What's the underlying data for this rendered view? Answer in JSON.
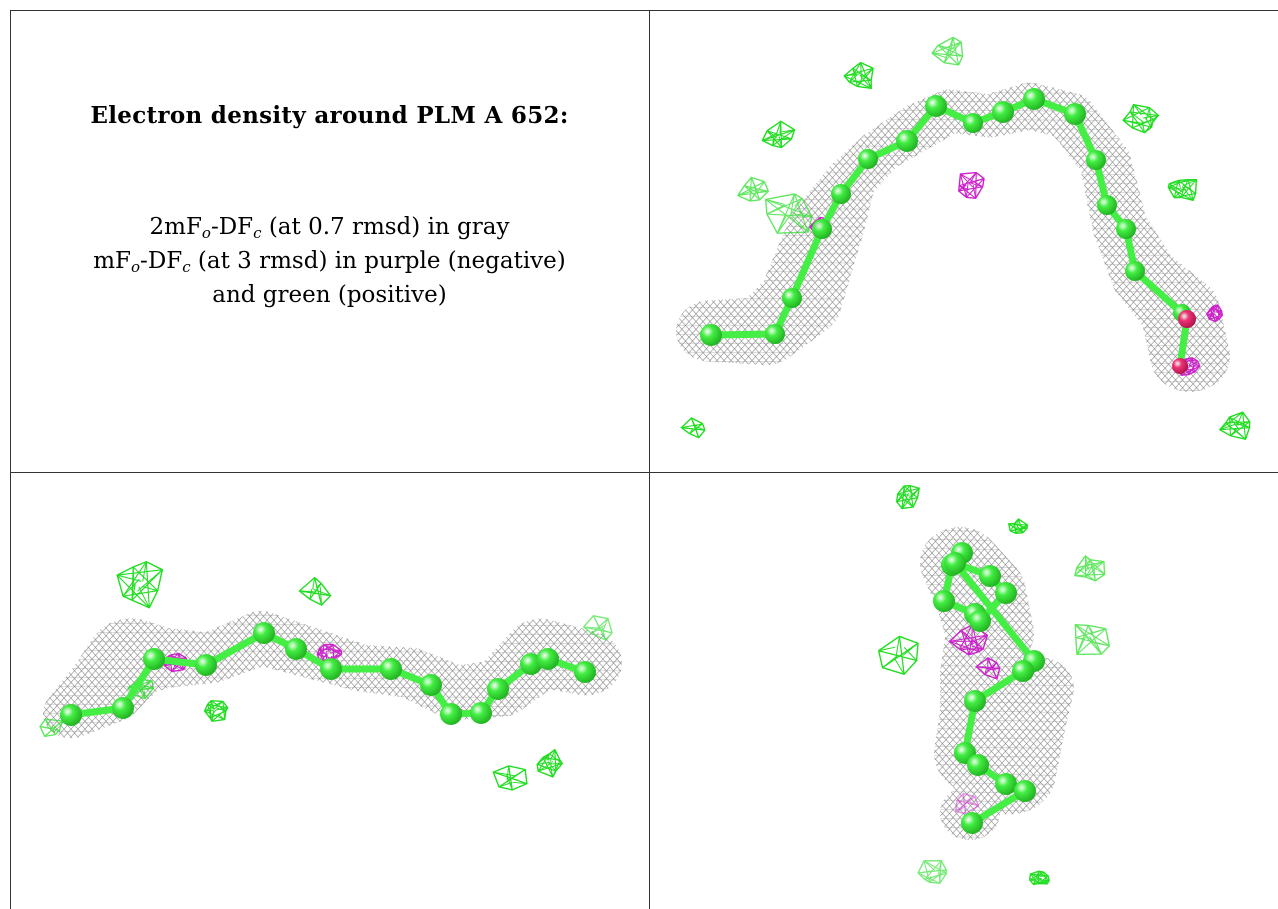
{
  "legend": {
    "title": "Electron density around PLM A 652:",
    "line1": {
      "prefix": "2mF",
      "sub1": "o",
      "mid": "-DF",
      "sub2": "c",
      "suffix": " (at 0.7 rmsd) in gray"
    },
    "line2": {
      "prefix": "mF",
      "sub1": "o",
      "mid": "-DF",
      "sub2": "c",
      "suffix": " (at 3 rmsd) in purple (negative)"
    },
    "line3": "and green (positive)"
  },
  "colors": {
    "border": "#333333",
    "mesh_2fofc": "#8a8a8a",
    "mesh_negative": "#cc22cc",
    "mesh_positive": "#22dd22",
    "carbon_atom": "#44ee44",
    "oxygen_atom": "#ee3377"
  },
  "panels": [
    {
      "id": "view-top-right",
      "view": "arched chain"
    },
    {
      "id": "view-bottom-left",
      "view": "extended chain"
    },
    {
      "id": "view-bottom-right",
      "view": "end-on chain"
    }
  ]
}
